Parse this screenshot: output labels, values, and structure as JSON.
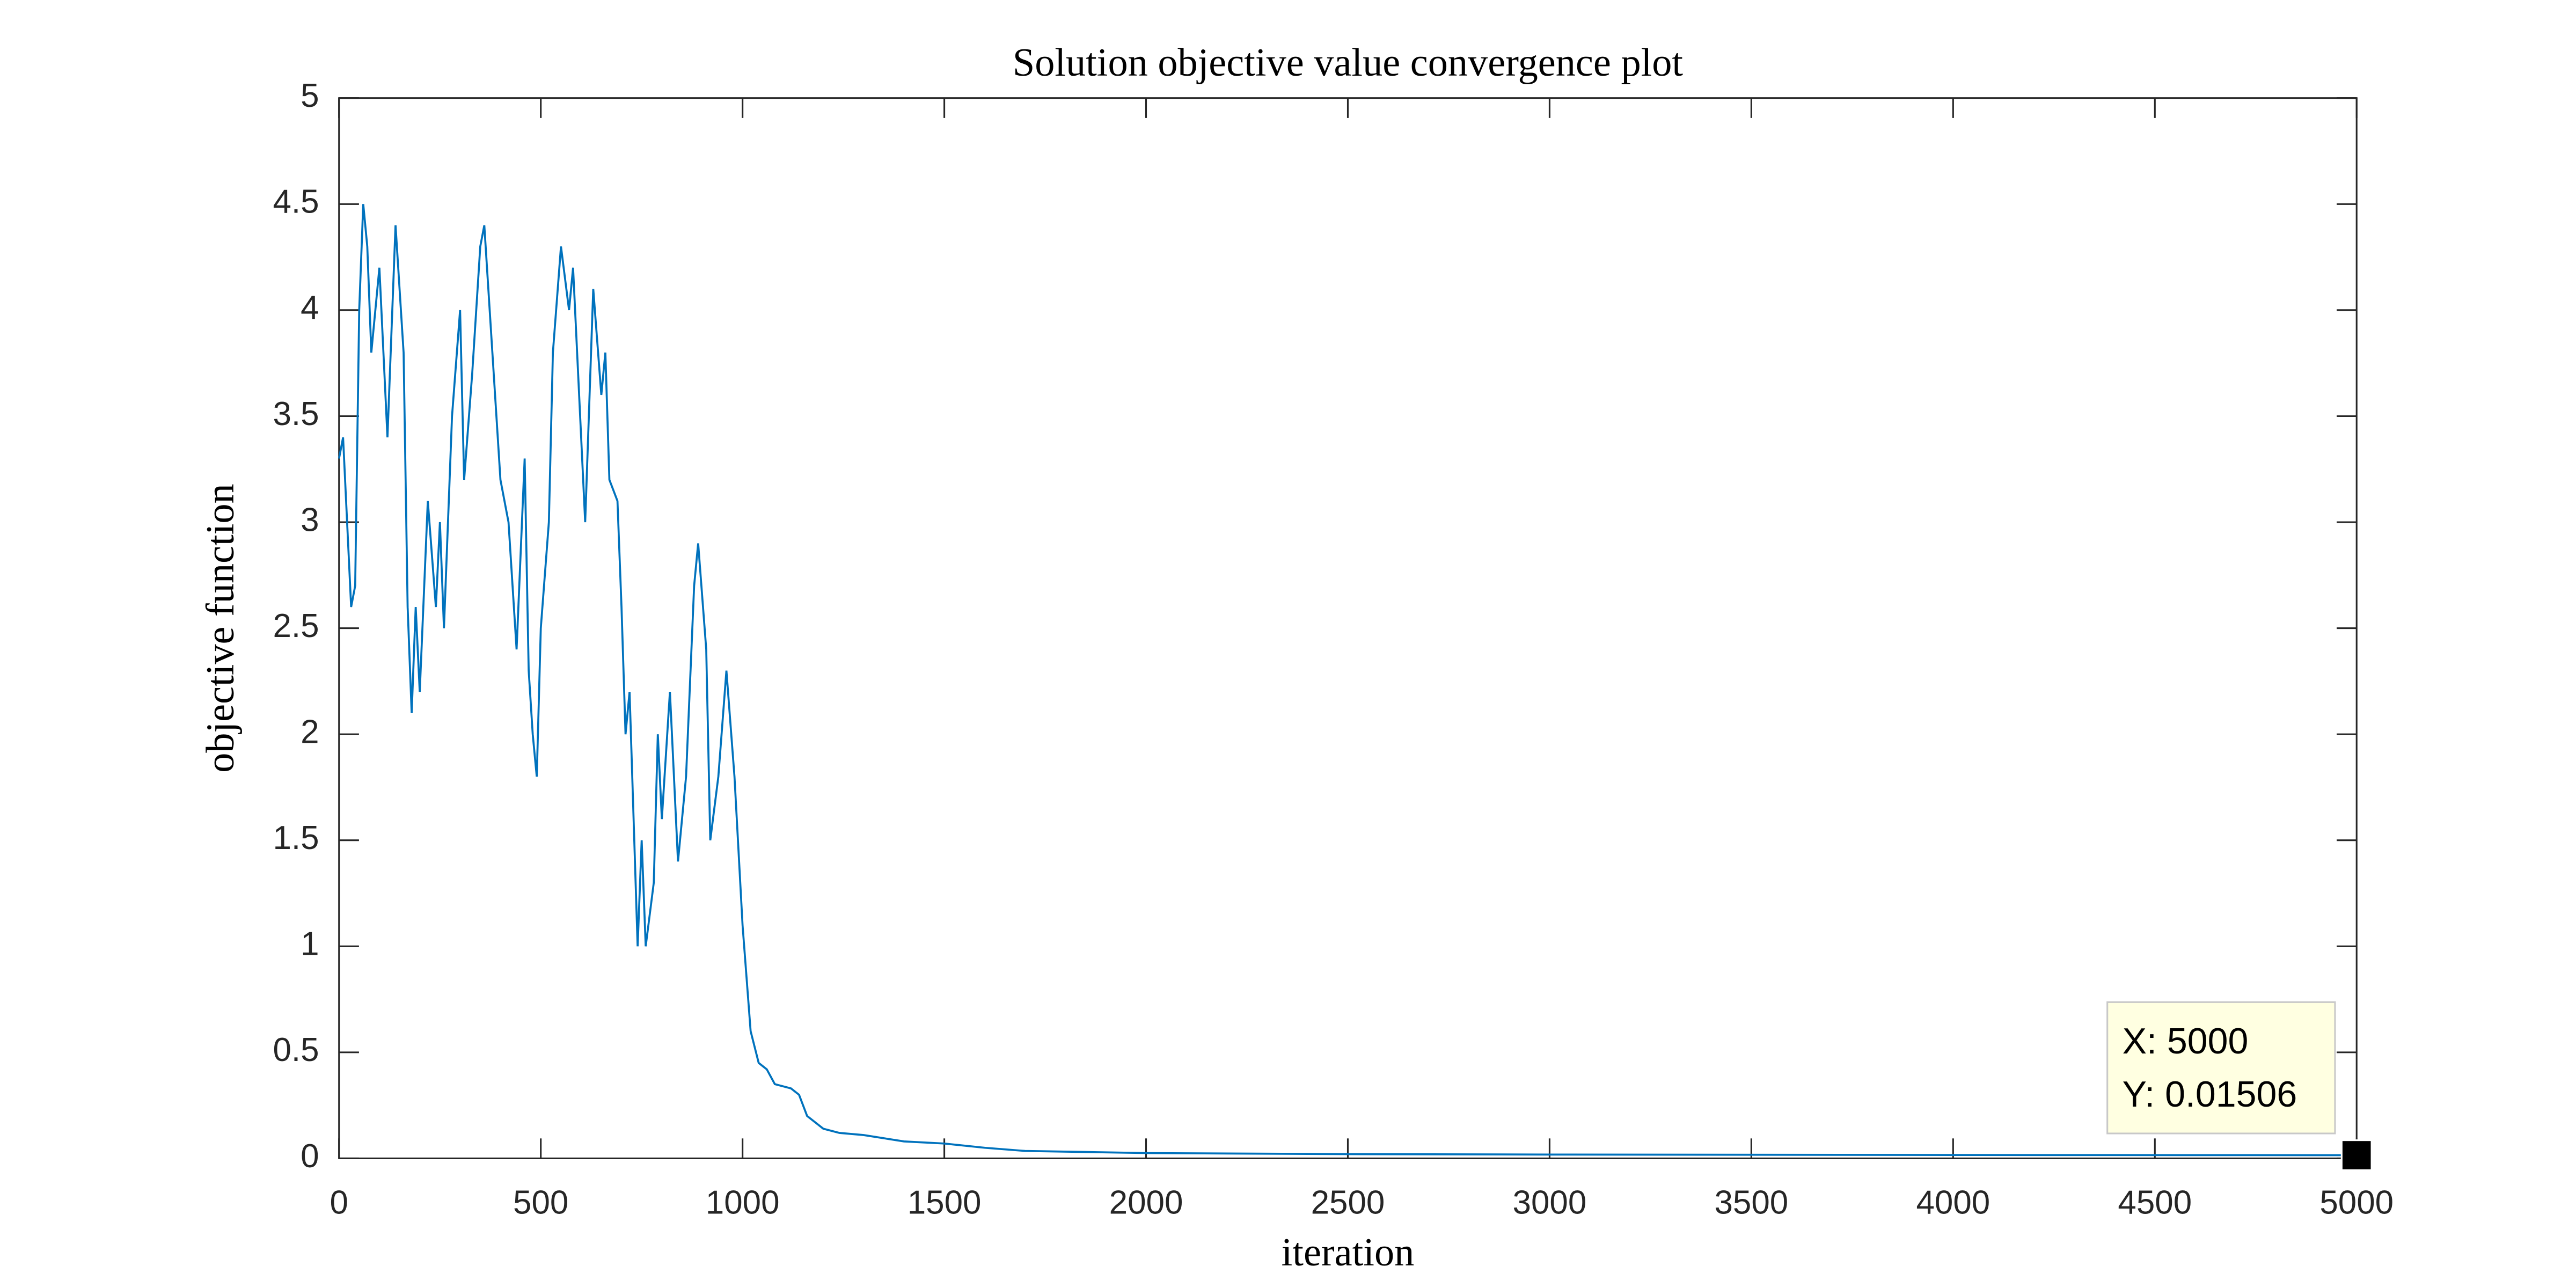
{
  "chart_data": {
    "type": "line",
    "title": "Solution objective value convergence plot",
    "x_label": "iteration",
    "y_label": "objective function",
    "x": [
      0,
      10,
      20,
      30,
      40,
      50,
      60,
      70,
      80,
      100,
      120,
      140,
      160,
      170,
      180,
      190,
      200,
      220,
      240,
      250,
      260,
      280,
      300,
      310,
      330,
      350,
      360,
      380,
      400,
      420,
      440,
      460,
      470,
      480,
      490,
      500,
      520,
      530,
      550,
      570,
      580,
      600,
      610,
      630,
      650,
      660,
      670,
      690,
      700,
      710,
      720,
      740,
      750,
      760,
      780,
      790,
      800,
      820,
      840,
      860,
      880,
      890,
      910,
      920,
      940,
      960,
      980,
      1000,
      1020,
      1040,
      1060,
      1080,
      1120,
      1140,
      1160,
      1200,
      1240,
      1300,
      1400,
      1500,
      1600,
      1700,
      2000,
      2500,
      3000,
      4000,
      5000
    ],
    "series": [
      {
        "color": "#0072bd",
        "values": [
          3.3,
          3.4,
          3.0,
          2.6,
          2.7,
          4.0,
          4.5,
          4.3,
          3.8,
          4.2,
          3.4,
          4.4,
          3.8,
          2.6,
          2.1,
          2.6,
          2.2,
          3.1,
          2.6,
          3.0,
          2.5,
          3.5,
          4.0,
          3.2,
          3.7,
          4.3,
          4.4,
          3.8,
          3.2,
          3.0,
          2.4,
          3.3,
          2.3,
          2.0,
          1.8,
          2.5,
          3.0,
          3.8,
          4.3,
          4.0,
          4.2,
          3.4,
          3.0,
          4.1,
          3.6,
          3.8,
          3.2,
          3.1,
          2.6,
          2.0,
          2.2,
          1.0,
          1.5,
          1.0,
          1.3,
          2.0,
          1.6,
          2.2,
          1.4,
          1.8,
          2.7,
          2.9,
          2.4,
          1.5,
          1.8,
          2.3,
          1.8,
          1.1,
          0.6,
          0.45,
          0.42,
          0.35,
          0.33,
          0.3,
          0.2,
          0.14,
          0.12,
          0.11,
          0.08,
          0.07,
          0.05,
          0.035,
          0.025,
          0.02,
          0.018,
          0.016,
          0.01506
        ]
      }
    ],
    "xlim": [
      0,
      5000
    ],
    "xticks": [
      0,
      500,
      1000,
      1500,
      2000,
      2500,
      3000,
      3500,
      4000,
      4500,
      5000
    ],
    "ylim": [
      0,
      5
    ],
    "yticks": [
      0,
      0.5,
      1,
      1.5,
      2,
      2.5,
      3,
      3.5,
      4,
      4.5,
      5
    ],
    "datatip": {
      "x": 5000,
      "y": 0.01506,
      "x_label": "X: 5000",
      "y_label": "Y: 0.01506"
    }
  }
}
